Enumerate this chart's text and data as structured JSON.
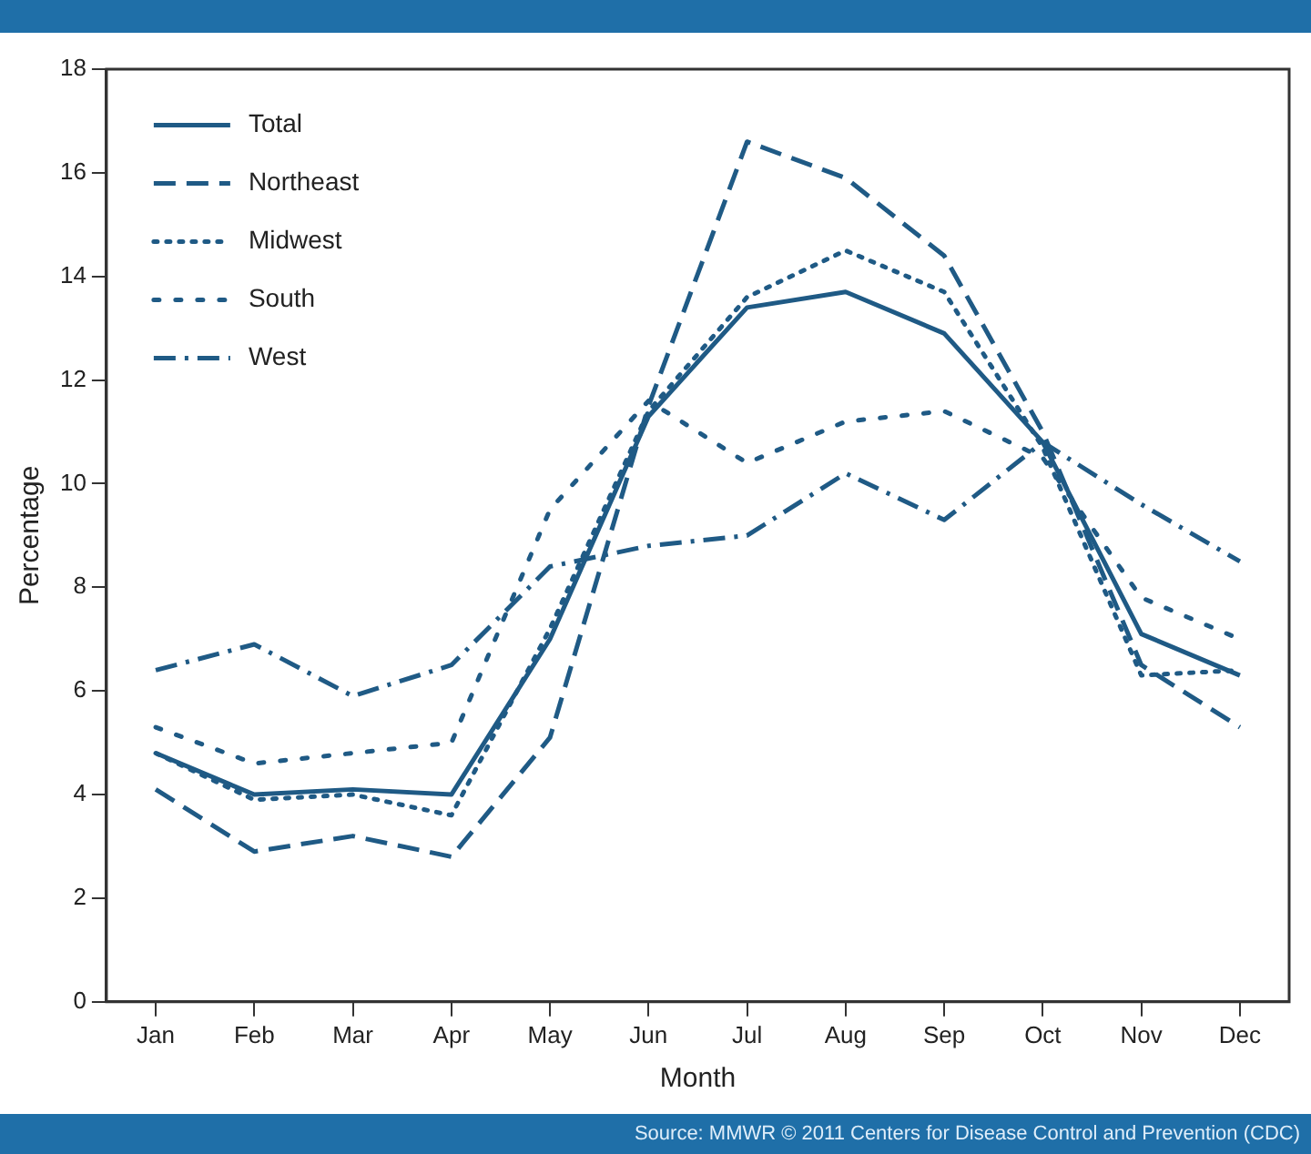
{
  "chart_data": {
    "type": "line",
    "xlabel": "Month",
    "ylabel": "Percentage",
    "categories": [
      "Jan",
      "Feb",
      "Mar",
      "Apr",
      "May",
      "Jun",
      "Jul",
      "Aug",
      "Sep",
      "Oct",
      "Nov",
      "Dec"
    ],
    "series": [
      {
        "name": "Total",
        "color": "#1f5a85",
        "line_style": "solid",
        "values": [
          4.8,
          4.0,
          4.1,
          4.0,
          7.0,
          11.3,
          13.4,
          13.7,
          12.9,
          10.8,
          7.1,
          6.3
        ]
      },
      {
        "name": "Northeast",
        "color": "#1f5a85",
        "line_style": "dashed",
        "values": [
          4.1,
          2.9,
          3.2,
          2.8,
          5.1,
          11.5,
          16.6,
          15.9,
          14.4,
          11.0,
          6.5,
          5.3
        ]
      },
      {
        "name": "Midwest",
        "color": "#1f5a85",
        "line_style": "dotted",
        "values": [
          4.8,
          3.9,
          4.0,
          3.6,
          7.2,
          11.4,
          13.6,
          14.5,
          13.7,
          10.7,
          6.3,
          6.4
        ]
      },
      {
        "name": "South",
        "color": "#1f5a85",
        "line_style": "dotted",
        "values": [
          5.3,
          4.6,
          4.8,
          5.0,
          9.5,
          11.6,
          10.4,
          11.2,
          11.4,
          10.5,
          7.8,
          7.0
        ]
      },
      {
        "name": "West",
        "color": "#1f5a85",
        "line_style": "dashdot",
        "values": [
          6.4,
          6.9,
          5.9,
          6.5,
          8.4,
          8.8,
          9.0,
          10.2,
          9.3,
          10.8,
          9.6,
          8.5
        ]
      }
    ],
    "ylim": [
      0,
      18
    ],
    "yticks": [
      0,
      2,
      4,
      6,
      8,
      10,
      12,
      14,
      16,
      18
    ],
    "grid": false,
    "legend": "top left",
    "marker": "none",
    "annotations": [
      "Source: MMWR © 2011 Centers for Disease Control and Prevention (CDC)"
    ]
  }
}
